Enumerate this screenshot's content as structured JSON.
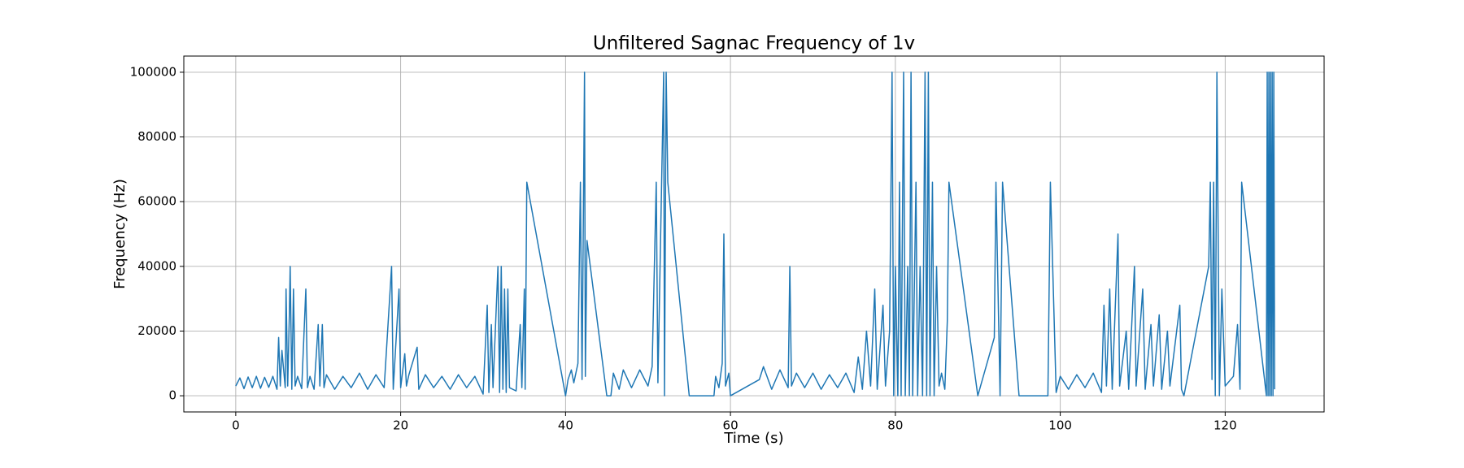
{
  "chart_data": {
    "type": "line",
    "title": "Unfiltered Sagnac Frequency of 1v",
    "x_label": "Time (s)",
    "y_label": "Frequency (Hz)",
    "x": [
      0,
      0.5,
      1,
      1.5,
      2,
      2.5,
      3,
      3.5,
      4,
      4.5,
      5,
      5.2,
      5.4,
      5.6,
      6,
      6.1,
      6.3,
      6.5,
      6.6,
      6.8,
      7,
      7.2,
      7.5,
      8,
      8.5,
      8.7,
      9,
      9.5,
      10,
      10.2,
      10.5,
      10.7,
      11,
      12,
      13,
      14,
      15,
      16,
      17,
      18,
      18.9,
      19.1,
      19.8,
      20,
      20.5,
      20.7,
      21,
      22,
      22.2,
      23,
      24,
      25,
      26,
      27,
      28,
      29,
      30,
      30.5,
      30.7,
      31,
      31.2,
      31.8,
      32,
      32.2,
      32.4,
      32.6,
      32.8,
      33,
      33.2,
      34,
      34.5,
      34.7,
      35,
      35.1,
      35.3,
      40,
      40.3,
      40.7,
      41,
      41.5,
      41.8,
      42,
      42.3,
      42.4,
      42.6,
      45,
      45.5,
      45.8,
      46.5,
      47,
      48,
      49,
      50,
      50.5,
      51,
      51.2,
      51.9,
      52,
      52.2,
      52.4,
      55,
      58,
      58.2,
      58.6,
      59,
      59.2,
      59.4,
      59.8,
      60,
      63.5,
      64,
      65,
      66,
      67,
      67.2,
      67.4,
      68,
      69,
      70,
      71,
      72,
      73,
      74,
      75,
      75.5,
      76,
      76.5,
      77,
      77.5,
      77.8,
      78.5,
      78.8,
      79.3,
      79.6,
      79.8,
      80,
      80.3,
      80.5,
      80.7,
      81,
      81.2,
      81.5,
      81.7,
      81.9,
      82.1,
      82.5,
      82.7,
      83,
      83.3,
      83.6,
      83.8,
      84,
      84.2,
      84.5,
      84.7,
      85,
      85.3,
      85.6,
      86,
      86.3,
      86.5,
      90,
      92,
      92.2,
      92.7,
      93,
      95,
      98.5,
      98.8,
      99.5,
      100,
      101,
      102,
      103,
      104,
      105,
      105.3,
      105.6,
      106,
      106.3,
      107,
      107.2,
      108,
      108.3,
      109,
      109.2,
      110,
      110.3,
      111,
      111.3,
      112,
      112.3,
      113,
      113.3,
      114.5,
      114.7,
      115,
      118,
      118.2,
      118.4,
      118.6,
      118.8,
      119,
      119.3,
      119.6,
      120,
      121,
      121.5,
      121.8,
      122,
      125,
      125.1,
      125.2,
      125.3,
      125.4,
      125.5,
      125.6,
      125.7,
      125.8,
      125.9,
      126
    ],
    "values": [
      3000,
      5500,
      2200,
      5800,
      2500,
      6000,
      2300,
      5700,
      2600,
      6000,
      2000,
      18000,
      3000,
      14000,
      2500,
      33000,
      3000,
      25000,
      40000,
      2000,
      33000,
      3000,
      6000,
      2200,
      33000,
      2500,
      6000,
      2000,
      22000,
      3000,
      22000,
      2500,
      6500,
      2000,
      6000,
      2500,
      7000,
      2000,
      6500,
      2500,
      40000,
      2000,
      33000,
      2500,
      13000,
      3000,
      6500,
      15000,
      2000,
      6500,
      2500,
      6000,
      2000,
      6500,
      2500,
      6000,
      500,
      28000,
      1000,
      22000,
      2500,
      40000,
      1000,
      40000,
      2000,
      33000,
      1000,
      33000,
      2500,
      1500,
      22000,
      2500,
      33000,
      2000,
      66000,
      0,
      5000,
      8000,
      4000,
      10000,
      66000,
      5000,
      100000,
      6000,
      48000,
      0,
      0,
      7000,
      2000,
      8000,
      2500,
      8000,
      3000,
      9000,
      66000,
      4000,
      100000,
      0,
      100000,
      66000,
      0,
      0,
      6000,
      2500,
      10000,
      50000,
      3000,
      7000,
      0,
      5000,
      9000,
      2000,
      8000,
      2500,
      40000,
      3000,
      7000,
      2500,
      7000,
      2000,
      6500,
      2500,
      7000,
      1000,
      12000,
      2000,
      20000,
      3000,
      33000,
      2000,
      28000,
      3000,
      20000,
      100000,
      0,
      40000,
      0,
      66000,
      0,
      100000,
      0,
      40000,
      0,
      100000,
      0,
      66000,
      0,
      40000,
      0,
      100000,
      0,
      100000,
      0,
      66000,
      0,
      40000,
      3000,
      7000,
      2000,
      23000,
      66000,
      0,
      18000,
      66000,
      0,
      66000,
      0,
      0,
      66000,
      1000,
      6000,
      2000,
      6500,
      2500,
      7000,
      1000,
      28000,
      3000,
      33000,
      2000,
      50000,
      3000,
      20000,
      2000,
      40000,
      3000,
      33000,
      2000,
      22000,
      3000,
      25000,
      2000,
      20000,
      3000,
      28000,
      2000,
      0,
      40000,
      66000,
      5000,
      66000,
      0,
      100000,
      0,
      33000,
      3000,
      6000,
      22000,
      2000,
      66000,
      0,
      100000,
      0,
      100000,
      0,
      100000,
      0,
      100000,
      0,
      100000,
      2000
    ],
    "color": "#1f77b4",
    "xlim": [
      -6.3,
      132
    ],
    "ylim": [
      -5000,
      105000
    ],
    "xticks": [
      0,
      20,
      40,
      60,
      80,
      100,
      120
    ],
    "yticks": [
      0,
      20000,
      40000,
      60000,
      80000,
      100000
    ],
    "grid": true
  }
}
